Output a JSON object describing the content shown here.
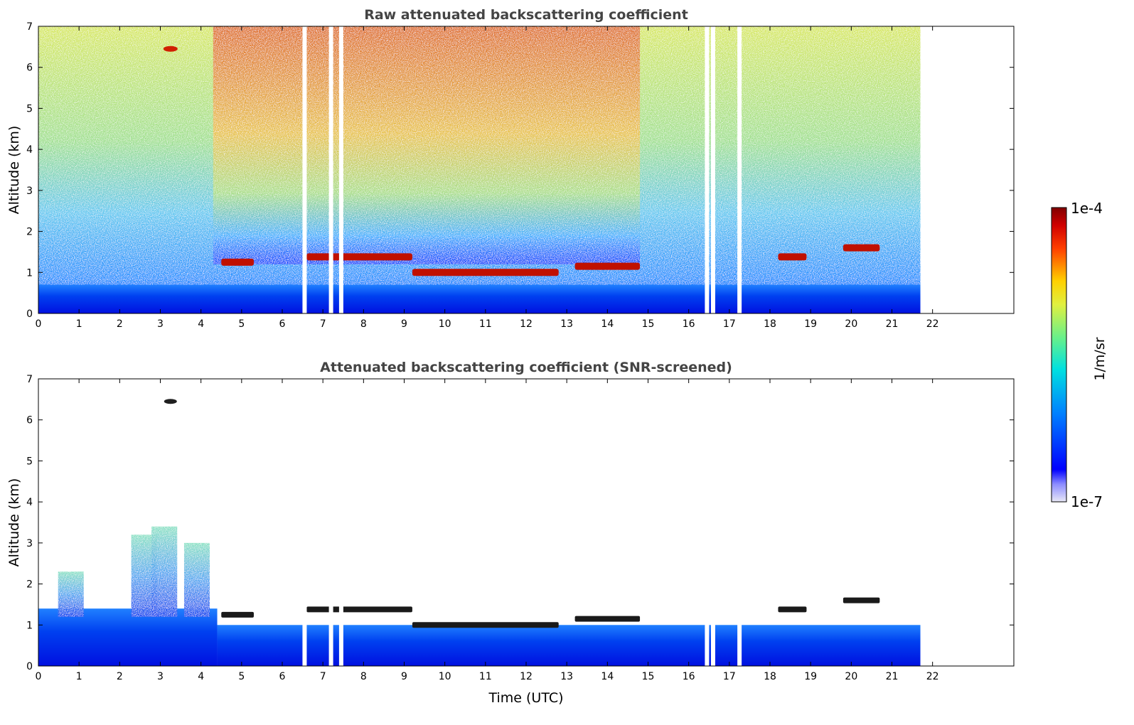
{
  "chart_data": [
    {
      "type": "heatmap",
      "title": "Raw attenuated backscattering coefficient",
      "xlabel": "",
      "ylabel": "Altitude (km)",
      "xlim": [
        0,
        24
      ],
      "ylim": [
        0,
        7
      ],
      "x_ticks": [
        "0",
        "1",
        "2",
        "3",
        "4",
        "5",
        "6",
        "7",
        "8",
        "9",
        "10",
        "11",
        "12",
        "13",
        "14",
        "15",
        "16",
        "17",
        "18",
        "19",
        "20",
        "21",
        "22"
      ],
      "y_ticks": [
        "0",
        "1",
        "2",
        "3",
        "4",
        "5",
        "6",
        "7"
      ],
      "data_end_hour": 21.7,
      "gaps_hours": [
        6.55,
        7.2,
        7.45,
        16.45,
        16.6,
        17.25
      ],
      "features": {
        "boundary_layer_top_km": 0.7,
        "cloud_layers": [
          {
            "start": 4.5,
            "end": 5.3,
            "alt_km": 1.25
          },
          {
            "start": 6.6,
            "end": 9.2,
            "alt_km": 1.38
          },
          {
            "start": 9.2,
            "end": 12.8,
            "alt_km": 1.0
          },
          {
            "start": 13.2,
            "end": 14.8,
            "alt_km": 1.15
          },
          {
            "start": 18.2,
            "end": 18.9,
            "alt_km": 1.38
          },
          {
            "start": 19.8,
            "end": 20.7,
            "alt_km": 1.6
          }
        ],
        "isolated_cloud": {
          "hour": 3.25,
          "alt_km": 6.45
        }
      }
    },
    {
      "type": "heatmap",
      "title": "Attenuated backscattering coefficient (SNR-screened)",
      "xlabel": "Time (UTC)",
      "ylabel": "Altitude (km)",
      "xlim": [
        0,
        24
      ],
      "ylim": [
        0,
        7
      ],
      "x_ticks": [
        "0",
        "1",
        "2",
        "3",
        "4",
        "5",
        "6",
        "7",
        "8",
        "9",
        "10",
        "11",
        "12",
        "13",
        "14",
        "15",
        "16",
        "17",
        "18",
        "19",
        "20",
        "21",
        "22"
      ],
      "y_ticks": [
        "0",
        "1",
        "2",
        "3",
        "4",
        "5",
        "6",
        "7"
      ],
      "data_end_hour": 21.7,
      "features": {
        "boundary_layer_top_km": 0.7,
        "aerosol_plumes": [
          {
            "hour": 0.8,
            "top_km": 2.3
          },
          {
            "hour": 2.6,
            "top_km": 3.2
          },
          {
            "hour": 3.1,
            "top_km": 3.4
          },
          {
            "hour": 3.9,
            "top_km": 3.0
          }
        ],
        "isolated_cloud": {
          "hour": 3.25,
          "alt_km": 6.45
        }
      }
    }
  ],
  "colorbar": {
    "label": "1/m/sr",
    "max_label": "1e-4",
    "min_label": "1e-7",
    "scale": "log",
    "colormap": "jet",
    "low_color": "#e8e8f6",
    "high_color": "#800000"
  }
}
